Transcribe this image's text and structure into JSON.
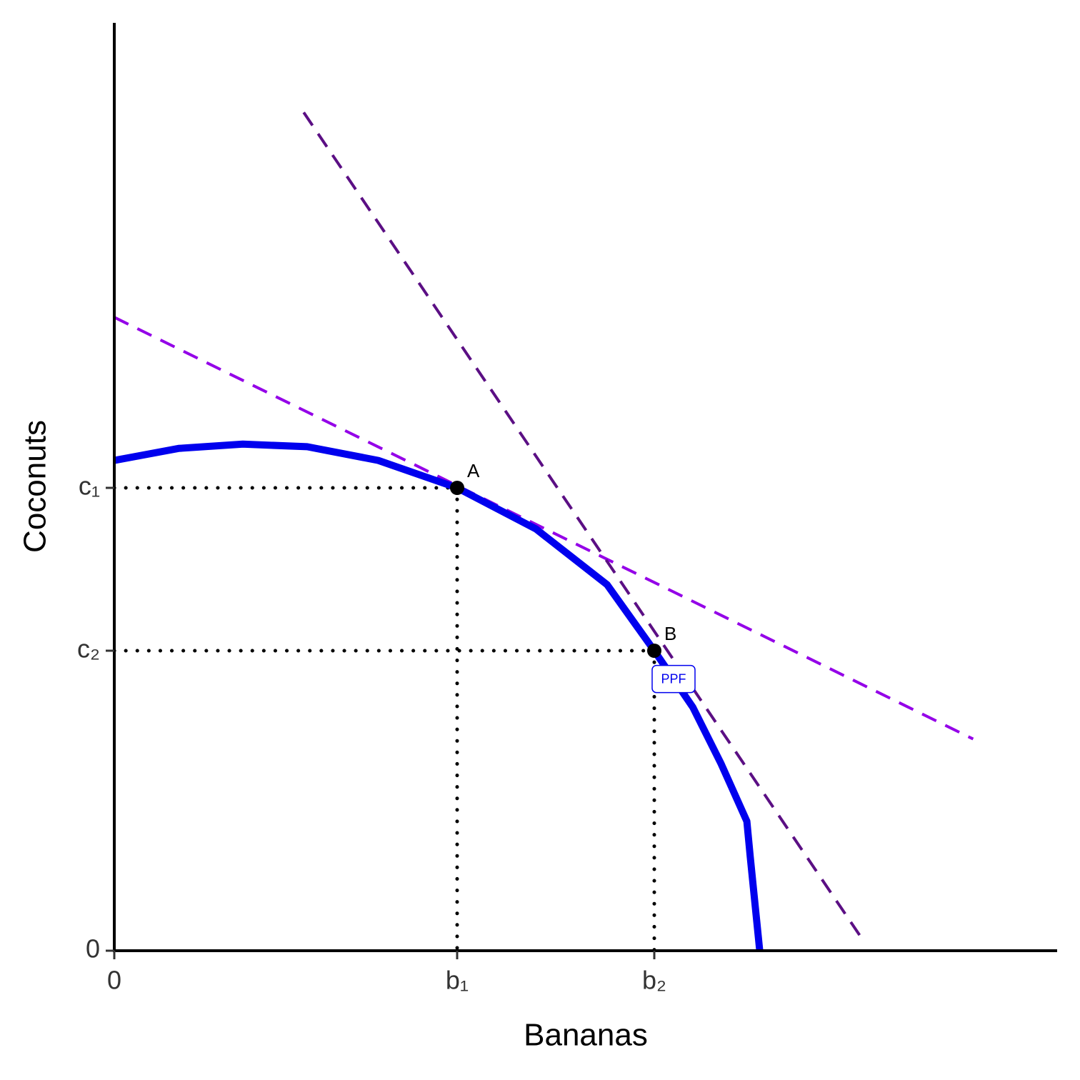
{
  "chart_data": {
    "type": "line",
    "xlabel": "Bananas",
    "ylabel": "Coconuts",
    "xlim": [
      0,
      11
    ],
    "ylim": [
      0,
      10.8
    ],
    "xticks": [
      0,
      {
        "value": 4,
        "label": "b₁"
      },
      {
        "value": 6.3,
        "label": "b₂"
      }
    ],
    "yticks": [
      0,
      {
        "value": 5.4,
        "label": "c₁"
      },
      {
        "value": 3.5,
        "label": "c₂"
      }
    ],
    "series": [
      {
        "name": "PPF",
        "color": "#0000ee",
        "x": [
          0,
          0.75,
          1.5,
          2.25,
          3.08,
          4.0,
          4.92,
          5.75,
          6.3,
          6.75,
          7.08,
          7.38,
          7.42,
          7.53
        ],
        "values": [
          5.72,
          5.86,
          5.91,
          5.88,
          5.72,
          5.4,
          4.92,
          4.27,
          3.5,
          2.84,
          2.18,
          1.51,
          1.09,
          0
        ]
      }
    ],
    "lines": [
      {
        "color": "#9400e8",
        "x": [
          0,
          10.02
        ],
        "values": [
          7.39,
          2.47
        ]
      },
      {
        "color": "#5b0f84",
        "x": [
          2.21,
          8.71
        ],
        "values": [
          9.78,
          0.16
        ]
      }
    ],
    "points": {
      "labels": [
        "A",
        "B"
      ],
      "x": [
        4,
        6.3
      ],
      "values": [
        5.4,
        3.5
      ]
    }
  }
}
